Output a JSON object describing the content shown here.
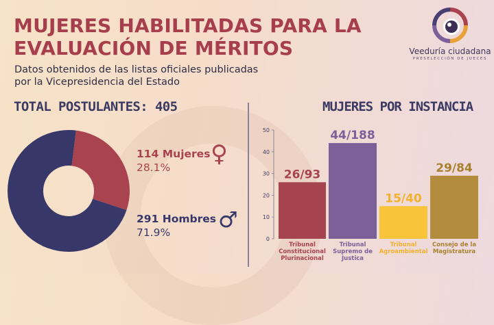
{
  "title_lines": [
    "MUJERES HABILITADAS PARA LA",
    "EVALUACIÓN DE MÉRITOS"
  ],
  "subtitle_lines": [
    "Datos obtenidos de las listas oficiales publicadas",
    "por la Vicepresidencia del Estado"
  ],
  "logo": {
    "name": "Veeduría ciudadana",
    "tagline": "PRESELECCIÓN DE JUECES"
  },
  "total_label": "TOTAL POSTULANTES: 405",
  "colors": {
    "title": "#a63e4c",
    "women": "#a9434f",
    "men": "#38376a",
    "bar_tcp": "#a5434f",
    "bar_tsj": "#7b609a",
    "bar_tag": "#f9c43a",
    "bar_cm": "#b48c3e"
  },
  "chart_data": [
    {
      "type": "pie",
      "title": "TOTAL POSTULANTES: 405",
      "slices": [
        {
          "label": "Mujeres",
          "value": 114,
          "percent": "28.1%",
          "display": "114 Mujeres",
          "symbol": "♀"
        },
        {
          "label": "Hombres",
          "value": 291,
          "percent": "71.9%",
          "display": "291 Hombres",
          "symbol": "♂"
        }
      ]
    },
    {
      "type": "bar",
      "title": "MUJERES POR INSTANCIA",
      "categories": [
        [
          "Tribunal",
          "Constitucional",
          "Plurinacional"
        ],
        [
          "Tribunal",
          "Supremo de",
          "Justica"
        ],
        [
          "Tribunal",
          "Agroambiental"
        ],
        [
          "Consejo de la",
          "Magistratura"
        ]
      ],
      "values": [
        26,
        44,
        15,
        29
      ],
      "totals": [
        93,
        188,
        40,
        84
      ],
      "data_labels": [
        "26/93",
        "44/188",
        "15/40",
        "29/84"
      ],
      "ylim": [
        0,
        50
      ],
      "yticks": [
        "0",
        "10",
        "20",
        "30",
        "40",
        "50"
      ],
      "grid": false
    }
  ]
}
